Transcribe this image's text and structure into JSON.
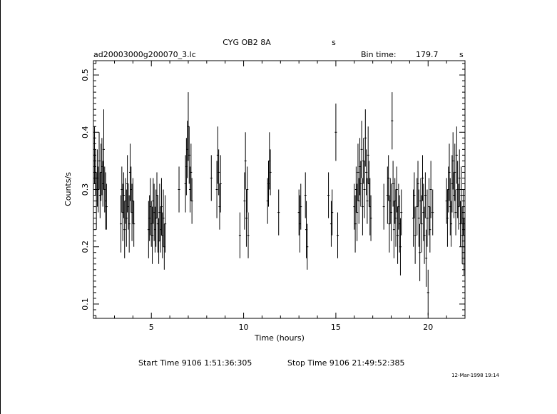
{
  "header": {
    "object": "CYG OB2 8A",
    "object_suffix": "s",
    "file": "ad20003000g200070_3.lc",
    "bin_label": "Bin time:",
    "bin_value": "179.7",
    "bin_unit": "s"
  },
  "footer": {
    "start": "Start Time  9106  1:51:36:305",
    "stop": "Stop Time  9106 21:49:52:385",
    "stamp": "12-Mar-1998 19:14"
  },
  "chart_data": {
    "type": "scatter",
    "xlabel": "Time (hours)",
    "ylabel": "Counts/s",
    "xlim": [
      1.86,
      22.0
    ],
    "ylim": [
      0.075,
      0.525
    ],
    "xticks": [
      "5",
      "10",
      "15",
      "20"
    ],
    "yticks": [
      "0.1",
      "0.2",
      "0.3",
      "0.4",
      "0.5"
    ],
    "error_bars": true,
    "x_tick_values": [
      5,
      10,
      15,
      20
    ],
    "y_tick_values": [
      0.1,
      0.2,
      0.3,
      0.4,
      0.5
    ],
    "series": [
      {
        "x": [
          1.92,
          1.97,
          2.02,
          2.07,
          2.12,
          2.17,
          2.22,
          2.27,
          2.32,
          2.37,
          2.42,
          2.47,
          2.52,
          2.57,
          3.35,
          3.4,
          3.45,
          3.5,
          3.55,
          3.6,
          3.65,
          3.7,
          3.75,
          3.8,
          3.85,
          3.9,
          3.95,
          4.0,
          4.05,
          4.85,
          4.9,
          4.95,
          5.0,
          5.05,
          5.1,
          5.15,
          5.2,
          5.25,
          5.3,
          5.35,
          5.4,
          5.45,
          5.5,
          5.55,
          5.6,
          5.65,
          5.7,
          5.75,
          6.5,
          6.85,
          6.9,
          6.95,
          7.0,
          7.05,
          7.1,
          7.15,
          7.2,
          8.25,
          8.55,
          8.6,
          8.65,
          8.7,
          8.75,
          9.8,
          10.05,
          10.1,
          10.15,
          10.2,
          10.25,
          11.3,
          11.35,
          11.4,
          11.45,
          11.9,
          13.0,
          13.05,
          13.1,
          13.35,
          13.4,
          13.45,
          14.6,
          14.75,
          14.8,
          15.0,
          15.1,
          16.0,
          16.05,
          16.1,
          16.15,
          16.2,
          16.25,
          16.3,
          16.35,
          16.4,
          16.45,
          16.5,
          16.55,
          16.6,
          16.65,
          16.7,
          16.75,
          16.8,
          16.85,
          16.9,
          17.6,
          17.8,
          17.85,
          17.9,
          17.95,
          18.0,
          18.05,
          18.1,
          18.15,
          18.2,
          18.25,
          18.3,
          18.35,
          18.4,
          18.45,
          18.5,
          18.55,
          19.2,
          19.25,
          19.3,
          19.4,
          19.45,
          19.5,
          19.55,
          19.6,
          19.65,
          19.7,
          19.75,
          19.8,
          19.85,
          19.9,
          19.95,
          20.0,
          20.05,
          20.1,
          20.15,
          20.25,
          21.0,
          21.05,
          21.1,
          21.15,
          21.2,
          21.25,
          21.3,
          21.35,
          21.4,
          21.45,
          21.5,
          21.55,
          21.6,
          21.65,
          21.7,
          21.75,
          21.8,
          21.85,
          21.9,
          21.95
        ],
        "y": [
          0.36,
          0.33,
          0.28,
          0.32,
          0.3,
          0.35,
          0.29,
          0.33,
          0.34,
          0.31,
          0.37,
          0.3,
          0.28,
          0.27,
          0.24,
          0.3,
          0.26,
          0.29,
          0.23,
          0.28,
          0.25,
          0.31,
          0.27,
          0.24,
          0.33,
          0.3,
          0.26,
          0.28,
          0.24,
          0.23,
          0.25,
          0.27,
          0.24,
          0.22,
          0.28,
          0.26,
          0.23,
          0.25,
          0.29,
          0.24,
          0.21,
          0.26,
          0.23,
          0.27,
          0.22,
          0.25,
          0.2,
          0.24,
          0.3,
          0.31,
          0.34,
          0.37,
          0.41,
          0.36,
          0.3,
          0.33,
          0.28,
          0.32,
          0.3,
          0.36,
          0.33,
          0.27,
          0.31,
          0.22,
          0.28,
          0.35,
          0.25,
          0.3,
          0.22,
          0.28,
          0.31,
          0.35,
          0.33,
          0.26,
          0.26,
          0.24,
          0.27,
          0.29,
          0.23,
          0.2,
          0.29,
          0.24,
          0.26,
          0.4,
          0.22,
          0.27,
          0.24,
          0.3,
          0.26,
          0.33,
          0.28,
          0.34,
          0.31,
          0.37,
          0.27,
          0.35,
          0.3,
          0.39,
          0.33,
          0.28,
          0.36,
          0.31,
          0.27,
          0.25,
          0.27,
          0.29,
          0.32,
          0.24,
          0.28,
          0.26,
          0.42,
          0.31,
          0.23,
          0.28,
          0.25,
          0.3,
          0.22,
          0.27,
          0.24,
          0.2,
          0.26,
          0.25,
          0.29,
          0.22,
          0.27,
          0.31,
          0.25,
          0.19,
          0.28,
          0.24,
          0.32,
          0.26,
          0.22,
          0.29,
          0.18,
          0.25,
          0.12,
          0.27,
          0.23,
          0.3,
          0.26,
          0.28,
          0.25,
          0.3,
          0.33,
          0.27,
          0.24,
          0.31,
          0.35,
          0.29,
          0.33,
          0.26,
          0.36,
          0.3,
          0.27,
          0.32,
          0.24,
          0.29,
          0.22,
          0.26,
          0.2
        ],
        "err": [
          0.05,
          0.04,
          0.05,
          0.05,
          0.04,
          0.05,
          0.04,
          0.05,
          0.05,
          0.04,
          0.07,
          0.04,
          0.05,
          0.04,
          0.05,
          0.04,
          0.05,
          0.04,
          0.05,
          0.04,
          0.05,
          0.05,
          0.04,
          0.05,
          0.05,
          0.04,
          0.05,
          0.04,
          0.04,
          0.05,
          0.04,
          0.05,
          0.04,
          0.05,
          0.04,
          0.05,
          0.04,
          0.05,
          0.04,
          0.05,
          0.04,
          0.05,
          0.04,
          0.05,
          0.04,
          0.05,
          0.04,
          0.05,
          0.04,
          0.05,
          0.05,
          0.05,
          0.06,
          0.05,
          0.04,
          0.05,
          0.04,
          0.04,
          0.05,
          0.05,
          0.04,
          0.04,
          0.05,
          0.04,
          0.05,
          0.05,
          0.05,
          0.04,
          0.04,
          0.04,
          0.04,
          0.05,
          0.04,
          0.04,
          0.04,
          0.05,
          0.04,
          0.04,
          0.05,
          0.04,
          0.04,
          0.04,
          0.04,
          0.05,
          0.04,
          0.04,
          0.05,
          0.04,
          0.05,
          0.05,
          0.04,
          0.05,
          0.04,
          0.05,
          0.05,
          0.04,
          0.05,
          0.05,
          0.04,
          0.04,
          0.05,
          0.04,
          0.05,
          0.04,
          0.04,
          0.05,
          0.04,
          0.05,
          0.04,
          0.05,
          0.05,
          0.04,
          0.05,
          0.04,
          0.05,
          0.04,
          0.05,
          0.04,
          0.05,
          0.05,
          0.04,
          0.05,
          0.04,
          0.05,
          0.05,
          0.04,
          0.05,
          0.05,
          0.04,
          0.05,
          0.04,
          0.05,
          0.05,
          0.04,
          0.05,
          0.05,
          0.04,
          0.05,
          0.04,
          0.05,
          0.04,
          0.04,
          0.05,
          0.04,
          0.05,
          0.05,
          0.04,
          0.05,
          0.05,
          0.04,
          0.05,
          0.04,
          0.05,
          0.05,
          0.04,
          0.05,
          0.04,
          0.05,
          0.05,
          0.04,
          0.05
        ]
      }
    ]
  }
}
